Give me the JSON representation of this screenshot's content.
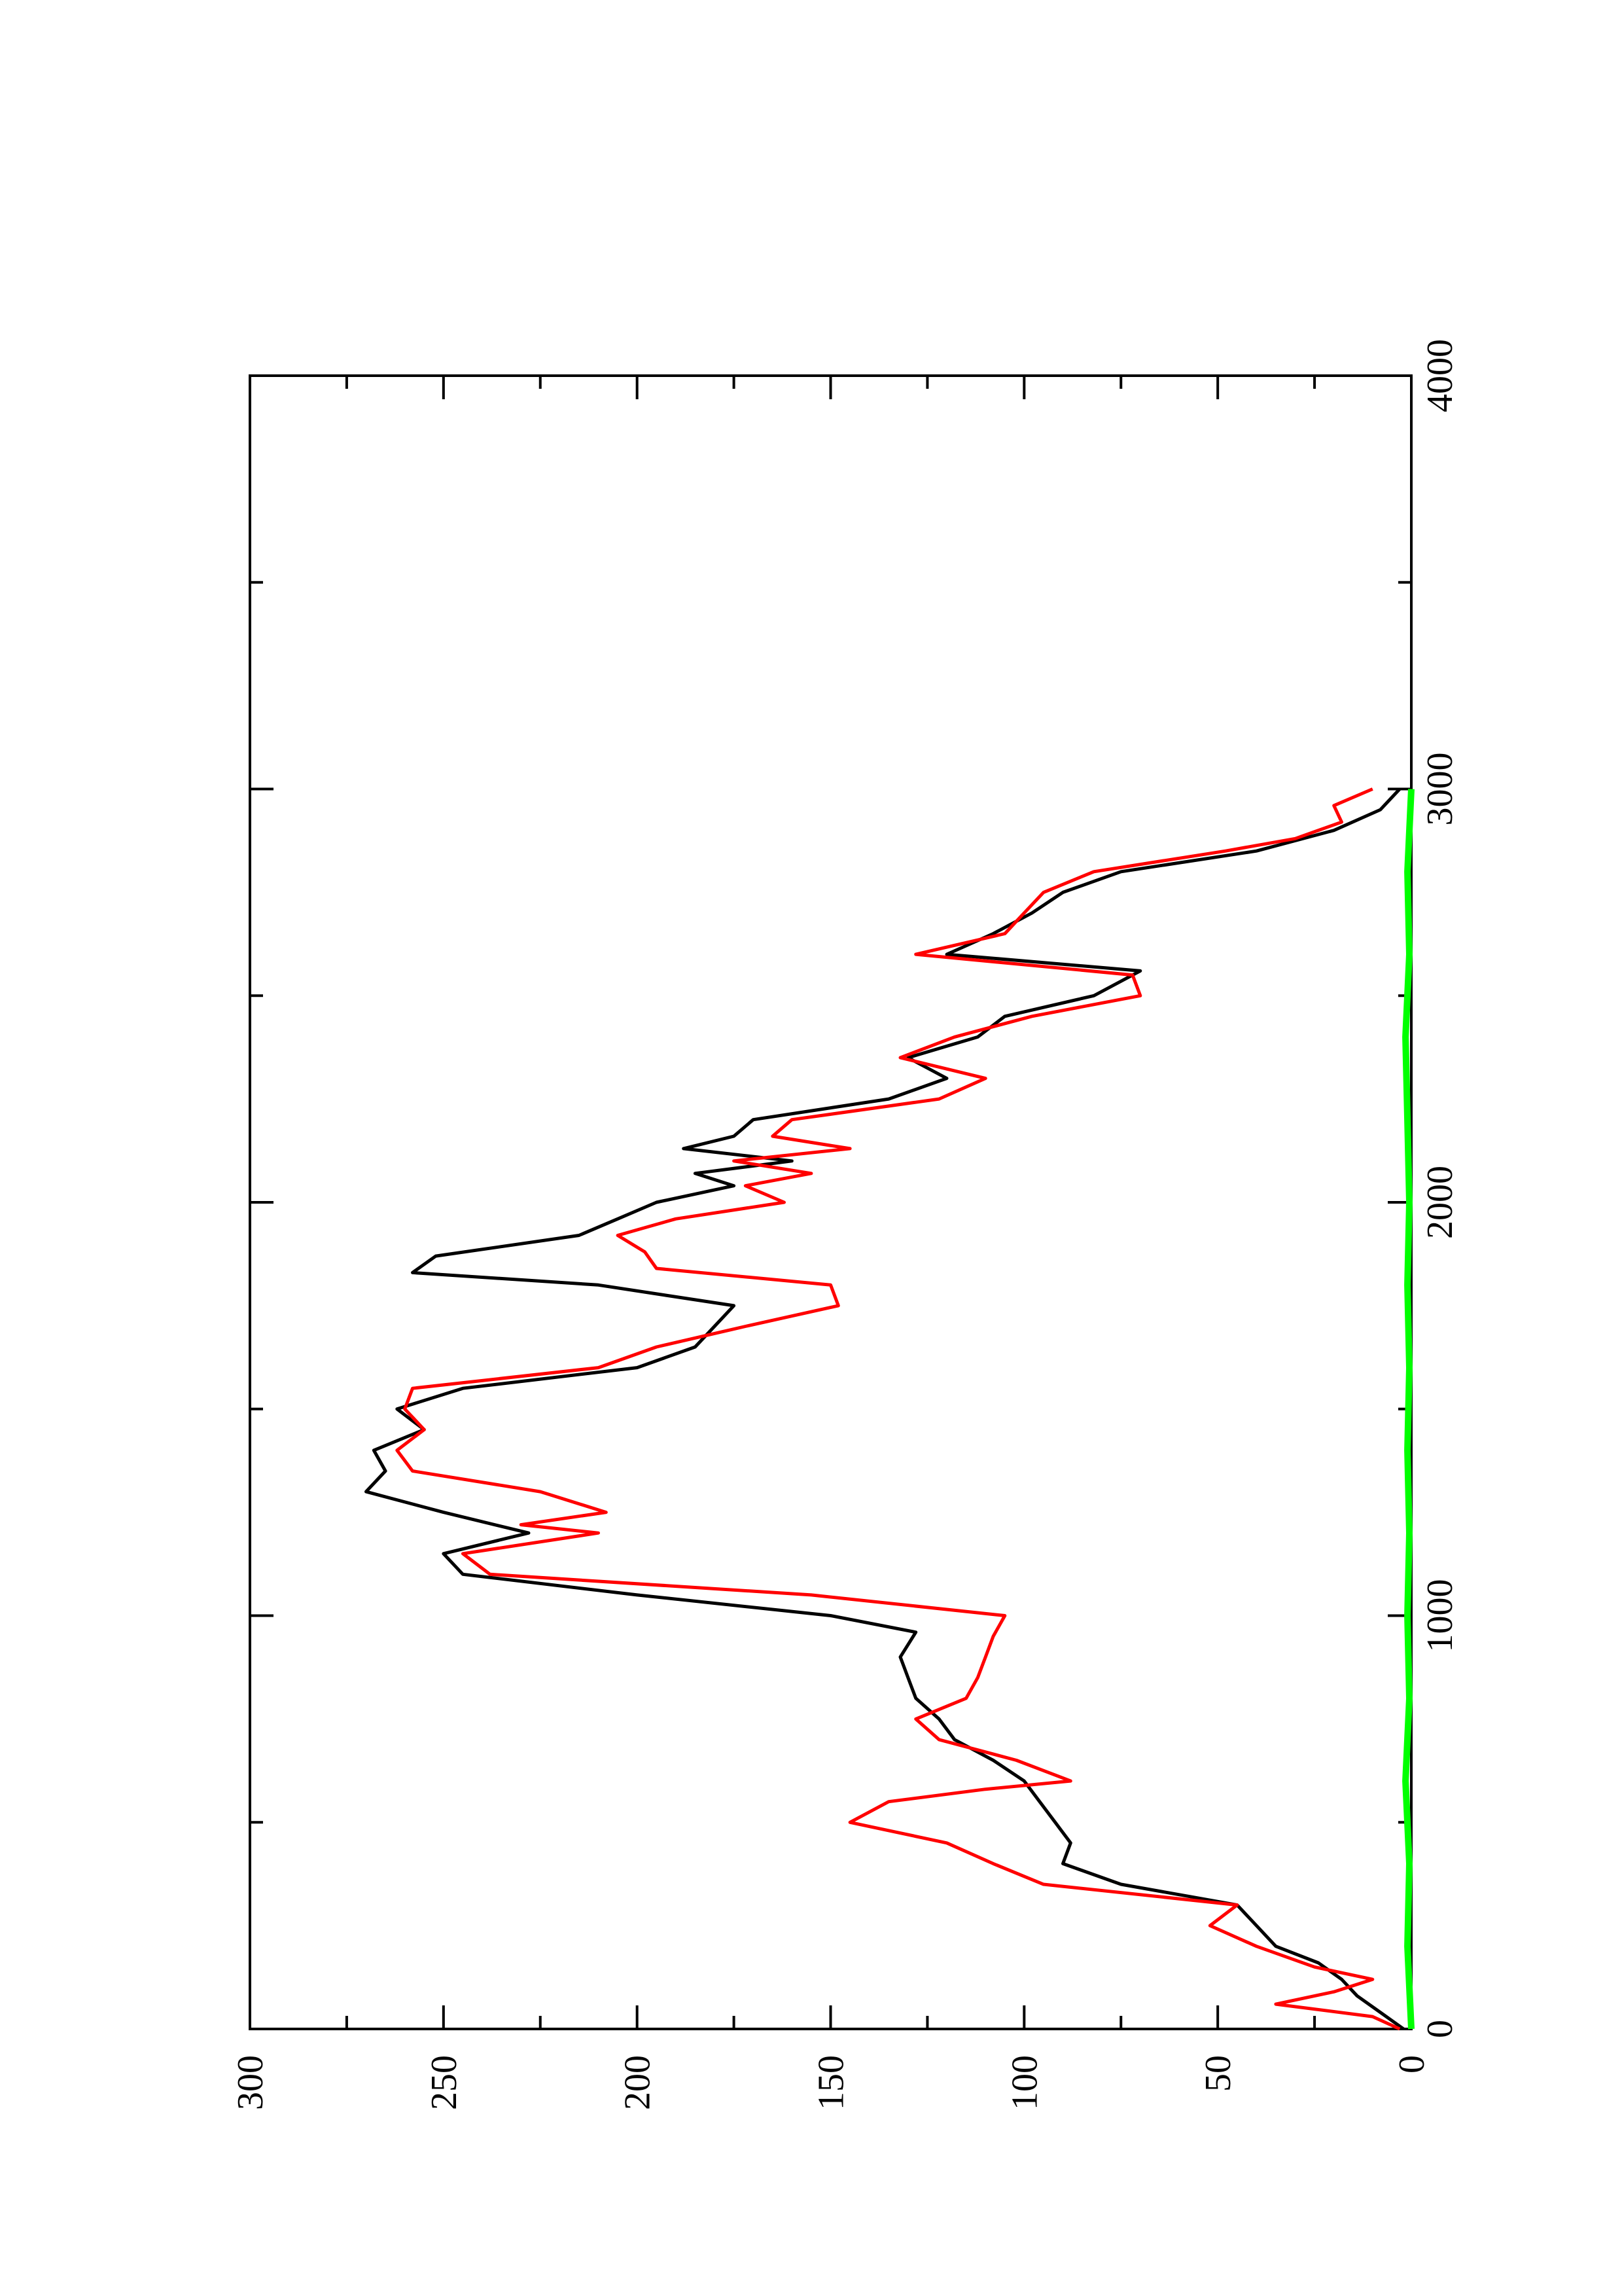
{
  "chart_data": {
    "type": "line",
    "title": "",
    "xlabel": "",
    "ylabel": "",
    "orientation": "rotated 90° counter-clockwise on page",
    "xlim": [
      0,
      4000
    ],
    "ylim": [
      0,
      300
    ],
    "x_ticks": [
      "0",
      "1000",
      "2000",
      "3000",
      "4000"
    ],
    "y_ticks": [
      "0",
      "50",
      "100",
      "150",
      "200",
      "250",
      "300"
    ],
    "grid": false,
    "legend": "none",
    "series": [
      {
        "color": "#000000",
        "x": [
          0,
          40,
          80,
          120,
          160,
          200,
          250,
          300,
          350,
          400,
          450,
          500,
          550,
          600,
          650,
          700,
          750,
          800,
          850,
          900,
          960,
          1000,
          1050,
          1100,
          1150,
          1200,
          1250,
          1300,
          1350,
          1400,
          1450,
          1500,
          1550,
          1600,
          1650,
          1700,
          1750,
          1800,
          1830,
          1870,
          1920,
          1960,
          2000,
          2040,
          2070,
          2100,
          2130,
          2160,
          2200,
          2250,
          2300,
          2350,
          2400,
          2450,
          2500,
          2560,
          2600,
          2650,
          2700,
          2750,
          2800,
          2850,
          2900,
          2950,
          3000
        ],
        "y": [
          2,
          8,
          14,
          18,
          24,
          35,
          40,
          45,
          75,
          90,
          88,
          92,
          96,
          100,
          108,
          118,
          122,
          128,
          130,
          132,
          128,
          150,
          200,
          245,
          250,
          228,
          250,
          270,
          265,
          268,
          255,
          262,
          245,
          200,
          185,
          180,
          175,
          210,
          258,
          252,
          215,
          205,
          195,
          175,
          185,
          160,
          188,
          175,
          170,
          135,
          120,
          130,
          112,
          105,
          82,
          70,
          120,
          108,
          98,
          90,
          75,
          40,
          20,
          8,
          3
        ]
      },
      {
        "color": "#ff0000",
        "x": [
          0,
          30,
          60,
          90,
          120,
          150,
          200,
          250,
          300,
          350,
          400,
          450,
          500,
          550,
          580,
          600,
          650,
          700,
          750,
          800,
          850,
          900,
          950,
          1000,
          1050,
          1100,
          1150,
          1200,
          1220,
          1250,
          1300,
          1350,
          1400,
          1450,
          1500,
          1550,
          1600,
          1650,
          1700,
          1750,
          1800,
          1840,
          1880,
          1920,
          1960,
          2000,
          2040,
          2070,
          2100,
          2130,
          2160,
          2200,
          2250,
          2300,
          2350,
          2400,
          2450,
          2500,
          2550,
          2600,
          2650,
          2700,
          2750,
          2800,
          2850,
          2880,
          2920,
          2960,
          3000
        ],
        "y": [
          3,
          10,
          35,
          20,
          10,
          25,
          40,
          52,
          45,
          95,
          108,
          120,
          145,
          135,
          110,
          88,
          102,
          122,
          128,
          115,
          112,
          110,
          108,
          105,
          155,
          238,
          245,
          210,
          230,
          208,
          225,
          258,
          262,
          255,
          260,
          258,
          210,
          195,
          172,
          148,
          150,
          195,
          198,
          205,
          190,
          162,
          172,
          155,
          175,
          145,
          165,
          160,
          122,
          110,
          132,
          118,
          98,
          70,
          72,
          128,
          105,
          100,
          95,
          82,
          48,
          30,
          18,
          20,
          10
        ]
      },
      {
        "color": "#00ff00",
        "x": [
          0,
          200,
          400,
          600,
          800,
          1000,
          1200,
          1400,
          1600,
          1800,
          2000,
          2200,
          2400,
          2600,
          2800,
          3000
        ],
        "y": [
          0,
          1,
          0.5,
          1.5,
          0.5,
          1,
          0.5,
          1,
          0.5,
          1,
          0.5,
          1,
          1.5,
          0.5,
          1,
          0
        ]
      }
    ]
  }
}
